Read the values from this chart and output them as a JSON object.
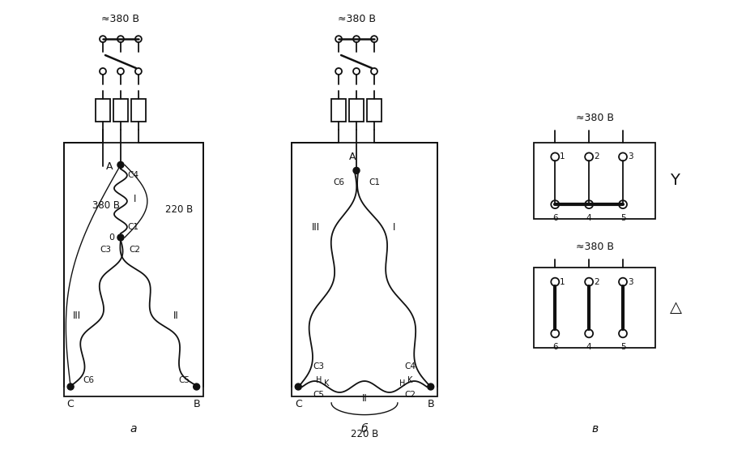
{
  "bg_color": "#ffffff",
  "line_color": "#111111",
  "voltage_380": "≈380 В",
  "voltage_220": "220 В",
  "voltage_380b": "380 В",
  "label_a": "а",
  "label_b": "б",
  "label_v": "в"
}
